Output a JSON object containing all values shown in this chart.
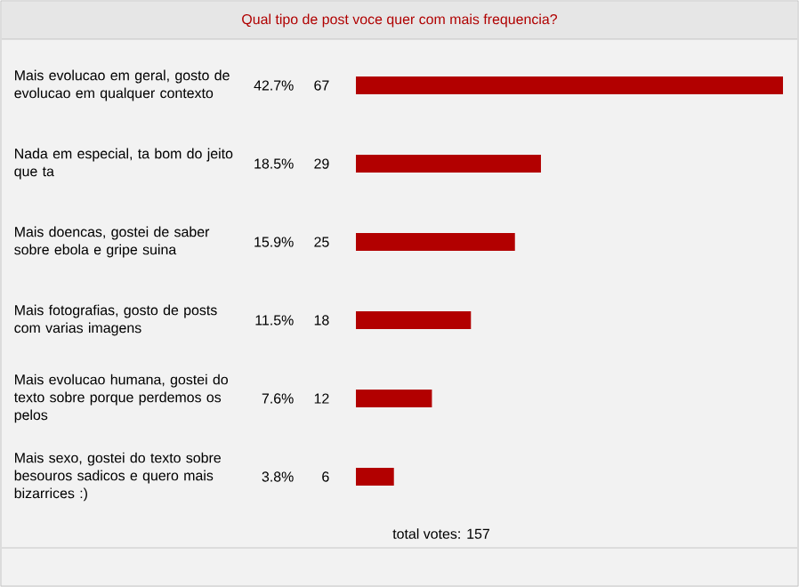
{
  "chart_data": {
    "type": "bar",
    "orientation": "horizontal",
    "title": "Qual tipo de post voce quer com mais frequencia?",
    "categories": [
      "Mais evolucao em geral, gosto de evolucao em qualquer contexto",
      "Nada em especial, ta bom do jeito que ta",
      "Mais doencas, gostei de saber sobre ebola e gripe suina",
      "Mais fotografias, gosto de posts com varias imagens",
      "Mais evolucao humana, gostei do texto sobre porque perdemos os pelos",
      "Mais sexo, gostei do texto sobre besouros sadicos e quero mais bizarrices :)"
    ],
    "values": [
      42.7,
      18.5,
      15.9,
      11.5,
      7.6,
      3.8
    ],
    "value_labels": [
      "42.7%",
      "18.5%",
      "15.9%",
      "11.5%",
      "7.6%",
      "3.8%"
    ],
    "color": "#b20000",
    "annotations": [
      "67",
      "29",
      "25",
      "18",
      "12",
      "6",
      "total votes: 157"
    ]
  }
}
